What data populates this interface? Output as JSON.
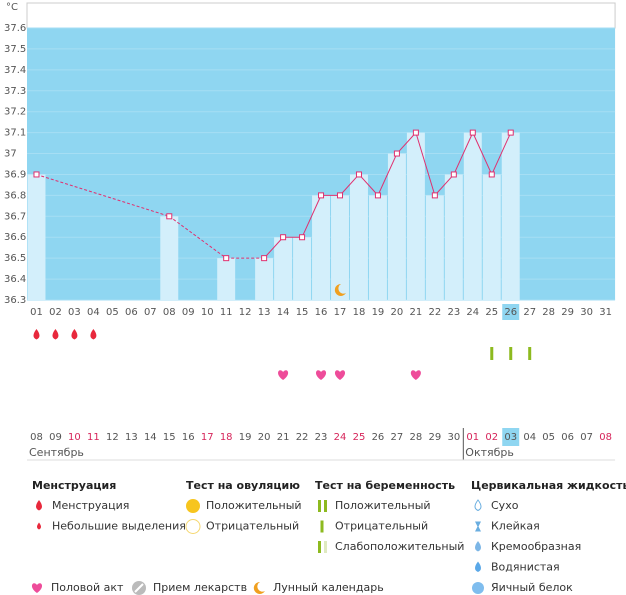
{
  "chart_data": {
    "type": "line",
    "unit": "°C",
    "categories": [
      "01",
      "02",
      "03",
      "04",
      "05",
      "06",
      "07",
      "08",
      "09",
      "10",
      "11",
      "12",
      "13",
      "14",
      "15",
      "16",
      "17",
      "18",
      "19",
      "20",
      "21",
      "22",
      "23",
      "24",
      "25",
      "26",
      "27",
      "28",
      "29",
      "30",
      "31"
    ],
    "values": [
      36.9,
      null,
      null,
      null,
      null,
      null,
      null,
      36.7,
      null,
      null,
      36.5,
      null,
      36.5,
      36.6,
      36.6,
      36.8,
      36.8,
      36.9,
      36.8,
      37.0,
      37.1,
      36.8,
      36.9,
      37.1,
      36.9,
      37.1,
      null,
      null,
      null,
      null,
      null
    ],
    "ylim": [
      36.3,
      37.6
    ],
    "yticks": [
      36.3,
      36.4,
      36.5,
      36.6,
      36.7,
      36.8,
      36.9,
      37,
      37.1,
      37.2,
      37.3,
      37.4,
      37.5,
      37.6
    ],
    "color": "#e0306f",
    "grid": true,
    "highlight_index": 25,
    "events": {
      "menstruation": [
        0,
        1,
        2,
        3
      ],
      "pregnancy_positive": [
        24,
        25,
        26
      ],
      "intercourse": [
        13,
        15,
        16,
        20
      ],
      "lunar": [
        16
      ]
    }
  },
  "calendar": {
    "dates": [
      "08",
      "09",
      "10",
      "11",
      "12",
      "13",
      "14",
      "15",
      "16",
      "17",
      "18",
      "19",
      "20",
      "21",
      "22",
      "23",
      "24",
      "25",
      "26",
      "27",
      "28",
      "29",
      "30",
      "01",
      "02",
      "03",
      "04",
      "05",
      "06",
      "07",
      "08"
    ],
    "weekend_indices": [
      2,
      3,
      9,
      10,
      16,
      17,
      23,
      24,
      30
    ],
    "highlight_index": 25,
    "months": [
      {
        "name": "Сентябрь",
        "start_index": 0
      },
      {
        "name": "Октябрь",
        "start_index": 23
      }
    ]
  },
  "legend": {
    "groups": [
      {
        "title": "Менструация",
        "items": [
          "Менструация",
          "Небольшие выделения"
        ]
      },
      {
        "title": "Тест на овуляцию",
        "items": [
          "Положительный",
          "Отрицательный"
        ]
      },
      {
        "title": "Тест на беременность",
        "items": [
          "Положительный",
          "Отрицательный",
          "Слабоположительный"
        ]
      },
      {
        "title": "Цервикальная жидкость",
        "items": [
          "Сухо",
          "Клейкая",
          "Кремообразная",
          "Водянистая",
          "Яичный белок"
        ]
      }
    ],
    "other": [
      "Половой акт",
      "Прием лекарств",
      "Лунный календарь"
    ]
  }
}
